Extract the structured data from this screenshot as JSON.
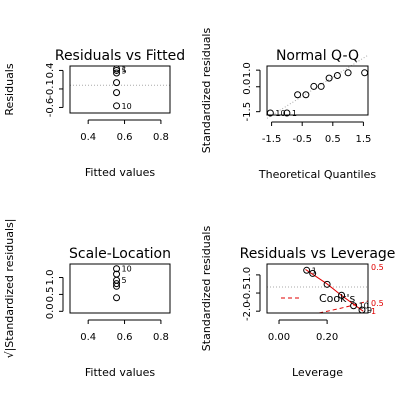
{
  "chart_data": [
    {
      "type": "scatter",
      "title": "Residuals vs Fitted",
      "xlabel": "Fitted values",
      "ylabel": "Residuals",
      "xlim": [
        0.3,
        0.85
      ],
      "ylim": [
        -0.75,
        0.52
      ],
      "xticks": [
        0.4,
        0.6,
        0.8
      ],
      "xtick_labels": [
        "0.4",
        "0.6",
        "0.8"
      ],
      "yticks": [
        -0.6,
        -0.1,
        0.4
      ],
      "ytick_labels": [
        "-0.6",
        "-0.1",
        "0.4"
      ],
      "reference_y": 0,
      "points": [
        {
          "x": 0.556,
          "y": 0.444,
          "label": "1"
        },
        {
          "x": 0.556,
          "y": 0.4,
          "label": "5"
        },
        {
          "x": 0.556,
          "y": 0.33,
          "label": ""
        },
        {
          "x": 0.556,
          "y": 0.07,
          "label": ""
        },
        {
          "x": 0.556,
          "y": -0.2,
          "label": ""
        },
        {
          "x": 0.556,
          "y": -0.556,
          "label": "10"
        }
      ]
    },
    {
      "type": "scatter",
      "title": "Normal Q-Q",
      "xlabel": "Theoretical Quantiles",
      "ylabel": "Standardized residuals",
      "xlim": [
        -1.65,
        1.65
      ],
      "ylim": [
        -1.7,
        1.25
      ],
      "xticks": [
        -1.5,
        -0.5,
        0.5,
        1.5
      ],
      "xtick_labels": [
        "-1.5",
        "-0.5",
        "0.5",
        "1.5"
      ],
      "yticks": [
        -1.5,
        0,
        1
      ],
      "ytick_labels": [
        "-1.5",
        "0.0",
        "1.0"
      ],
      "reference_line": [
        [
          -1.65,
          -1.9
        ],
        [
          1.65,
          1.9
        ]
      ],
      "points": [
        {
          "x": -1.54,
          "y": -1.58,
          "label": "10"
        },
        {
          "x": -1.0,
          "y": -1.58,
          "label": "1"
        },
        {
          "x": -0.65,
          "y": -0.48,
          "label": ""
        },
        {
          "x": -0.38,
          "y": -0.48,
          "label": ""
        },
        {
          "x": -0.12,
          "y": 0.02,
          "label": ""
        },
        {
          "x": 0.12,
          "y": 0.02,
          "label": ""
        },
        {
          "x": 0.38,
          "y": 0.52,
          "label": ""
        },
        {
          "x": 0.65,
          "y": 0.68,
          "label": ""
        },
        {
          "x": 1.0,
          "y": 0.84,
          "label": ""
        },
        {
          "x": 1.54,
          "y": 0.84,
          "label": ""
        }
      ]
    },
    {
      "type": "scatter",
      "title": "Scale-Location",
      "xlabel": "Fitted values",
      "ylabel": "√|Standardized residuals|",
      "xlim": [
        0.3,
        0.85
      ],
      "ylim": [
        -0.05,
        1.4
      ],
      "xticks": [
        0.4,
        0.6,
        0.8
      ],
      "xtick_labels": [
        "0.4",
        "0.6",
        "0.8"
      ],
      "yticks": [
        0,
        0.5,
        1
      ],
      "ytick_labels": [
        "0.0",
        "0.5",
        "1.0"
      ],
      "points": [
        {
          "x": 0.556,
          "y": 1.26,
          "label": "10"
        },
        {
          "x": 0.556,
          "y": 1.1,
          "label": ""
        },
        {
          "x": 0.556,
          "y": 0.92,
          "label": "5"
        },
        {
          "x": 0.556,
          "y": 0.82,
          "label": ""
        },
        {
          "x": 0.556,
          "y": 0.74,
          "label": ""
        },
        {
          "x": 0.556,
          "y": 0.4,
          "label": ""
        }
      ]
    },
    {
      "type": "scatter",
      "title": "Residuals vs Leverage",
      "xlabel": "Leverage",
      "ylabel": "Standardized residuals",
      "xlim": [
        -0.05,
        0.37
      ],
      "ylim": [
        -2.15,
        1.9
      ],
      "xticks": [
        0,
        0.2
      ],
      "xtick_labels": [
        "0.00",
        "0.20"
      ],
      "yticks": [
        -2,
        -0.5,
        1
      ],
      "ytick_labels": [
        "-2.0",
        "-0.5",
        "1.0"
      ],
      "reference_y": 0,
      "legend": {
        "label": "Cook's",
        "placement": "bottom-center"
      },
      "cook_levels": [
        {
          "value": 0.5,
          "label": "0.5"
        },
        {
          "value": 1,
          "label": "1"
        }
      ],
      "cook_top_label": "0.5",
      "points": [
        {
          "x": 0.115,
          "y": 1.38,
          "label": "1"
        },
        {
          "x": 0.14,
          "y": 1.12,
          "label": ""
        },
        {
          "x": 0.2,
          "y": 0.22,
          "label": ""
        },
        {
          "x": 0.26,
          "y": -0.68,
          "label": ""
        },
        {
          "x": 0.31,
          "y": -1.55,
          "label": "10"
        },
        {
          "x": 0.345,
          "y": -1.9,
          "label": "9"
        }
      ],
      "smooth": [
        [
          0.11,
          1.45
        ],
        [
          0.2,
          0.25
        ],
        [
          0.26,
          -0.7
        ],
        [
          0.35,
          -2.0
        ]
      ]
    }
  ]
}
